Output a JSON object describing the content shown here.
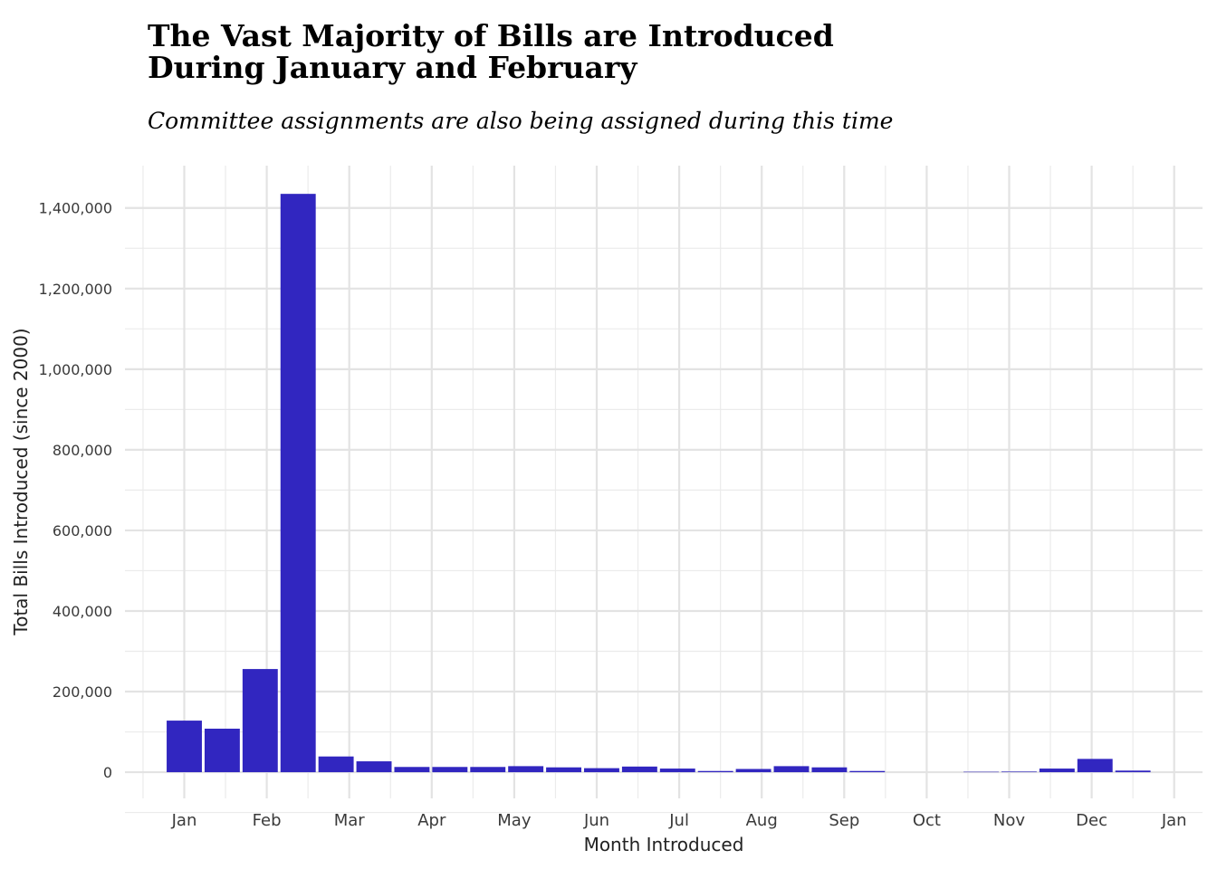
{
  "chart_data": {
    "type": "bar",
    "title": "The Vast Majority of Bills are Introduced\nDuring January and February",
    "subtitle": "Committee assignments are also being assigned during this time",
    "xlabel": "Month Introduced",
    "ylabel": "Total Bills Introduced (since 2000)",
    "x_tick_labels": [
      "Jan",
      "Feb",
      "Mar",
      "Apr",
      "May",
      "Jun",
      "Jul",
      "Aug",
      "Sep",
      "Oct",
      "Nov",
      "Dec",
      "Jan"
    ],
    "y_tick_labels": [
      "0",
      "200,000",
      "400,000",
      "600,000",
      "800,000",
      "1,000,000",
      "1,200,000",
      "1,400,000"
    ],
    "y_ticks": [
      0,
      200000,
      400000,
      600000,
      800000,
      1000000,
      1200000,
      1400000
    ],
    "ylim": [
      -65000,
      1505000
    ],
    "bin_width_months": 0.46,
    "bars": [
      {
        "x": 0.5,
        "value": 128000
      },
      {
        "x": 0.96,
        "value": 108000
      },
      {
        "x": 1.42,
        "value": 256000
      },
      {
        "x": 1.88,
        "value": 1435000
      },
      {
        "x": 2.34,
        "value": 39000
      },
      {
        "x": 2.8,
        "value": 27000
      },
      {
        "x": 3.26,
        "value": 13000
      },
      {
        "x": 3.72,
        "value": 13000
      },
      {
        "x": 4.18,
        "value": 13000
      },
      {
        "x": 4.64,
        "value": 15000
      },
      {
        "x": 5.1,
        "value": 12000
      },
      {
        "x": 5.56,
        "value": 10000
      },
      {
        "x": 6.02,
        "value": 14000
      },
      {
        "x": 6.48,
        "value": 9000
      },
      {
        "x": 6.94,
        "value": 3000
      },
      {
        "x": 7.4,
        "value": 8000
      },
      {
        "x": 7.86,
        "value": 15000
      },
      {
        "x": 8.32,
        "value": 12000
      },
      {
        "x": 8.78,
        "value": 3000
      },
      {
        "x": 9.24,
        "value": 0
      },
      {
        "x": 9.7,
        "value": 0
      },
      {
        "x": 10.16,
        "value": 1000
      },
      {
        "x": 10.62,
        "value": 1500
      },
      {
        "x": 11.08,
        "value": 9000
      },
      {
        "x": 11.54,
        "value": 33000
      },
      {
        "x": 12.0,
        "value": 4000
      }
    ],
    "bar_color": "#3126c0",
    "grid": true,
    "legend": "none"
  }
}
